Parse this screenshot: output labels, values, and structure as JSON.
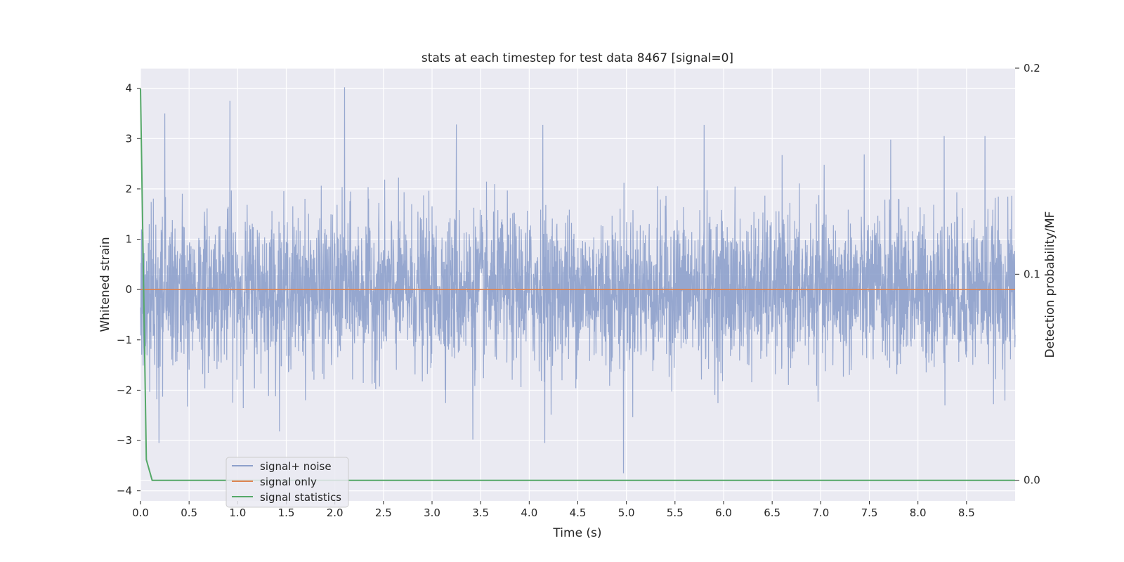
{
  "chart_data": {
    "type": "line",
    "title": "stats at each timestep for test data 8467 [signal=0]",
    "xlabel": "Time (s)",
    "ylabel": "Whitened strain",
    "y2label": "Detection probability/MF",
    "xlim": [
      0.0,
      9.0
    ],
    "ylim": [
      -4.2,
      4.4
    ],
    "y2lim": [
      -0.01,
      0.2
    ],
    "xticks": [
      "0.0",
      "0.5",
      "1.0",
      "1.5",
      "2.0",
      "2.5",
      "3.0",
      "3.5",
      "4.0",
      "4.5",
      "5.0",
      "5.5",
      "6.0",
      "6.5",
      "7.0",
      "7.5",
      "8.0",
      "8.5"
    ],
    "yticks": [
      "−4",
      "−3",
      "−2",
      "−1",
      "0",
      "1",
      "2",
      "3",
      "4"
    ],
    "y2ticks": [
      "0.0",
      "0.1",
      "0.2"
    ],
    "grid": true,
    "legend_position": "lower-left",
    "series": [
      {
        "name": "signal+ noise",
        "color": "#8da0cb",
        "axis": "left",
        "description": "whitened noise, roughly Gaussian with std ~0.75, spikes up to ~4.0 and down to ~-3.6",
        "sample_rate_hz": 400,
        "notable_peaks": [
          [
            0.25,
            3.5
          ],
          [
            0.92,
            3.75
          ],
          [
            2.1,
            4.02
          ],
          [
            3.25,
            3.28
          ],
          [
            4.14,
            3.27
          ],
          [
            5.8,
            3.27
          ],
          [
            4.97,
            -3.65
          ],
          [
            0.19,
            -3.05
          ],
          [
            3.42,
            -2.98
          ],
          [
            4.16,
            -3.05
          ],
          [
            8.27,
            3.05
          ],
          [
            8.69,
            3.05
          ],
          [
            7.72,
            2.98
          ]
        ]
      },
      {
        "name": "signal only",
        "color": "#dd8452",
        "axis": "left",
        "x": [
          0.0,
          9.0
        ],
        "y": [
          0.0,
          0.0
        ]
      },
      {
        "name": "signal statistics",
        "color": "#55a868",
        "axis": "right",
        "x": [
          0.0,
          0.06,
          0.12,
          0.18,
          9.0
        ],
        "y": [
          0.19,
          0.01,
          0.0,
          0.0,
          0.0
        ]
      }
    ]
  }
}
